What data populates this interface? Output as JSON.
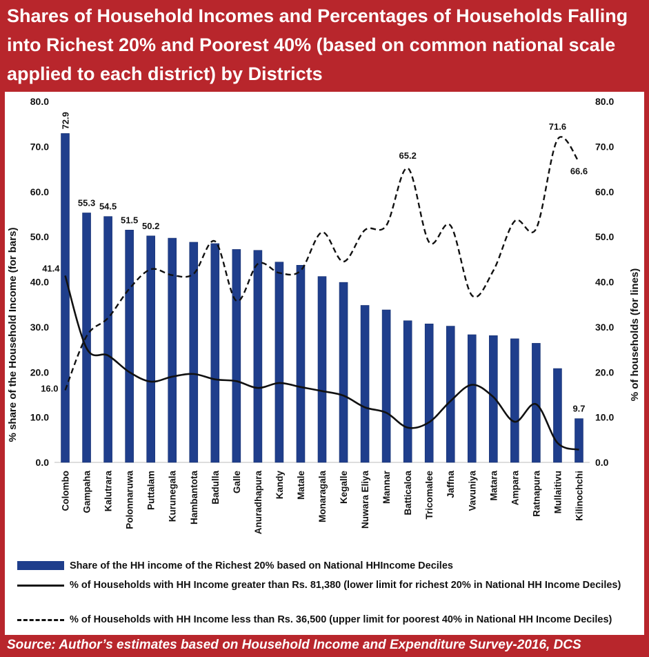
{
  "title": "Shares of Household Incomes and Percentages of Households Falling into Richest 20% and Poorest 40% (based on common national scale applied to each district) by Districts",
  "source": "Source: Author’s estimates based on Household Income and Expenditure Survey-2016, DCS",
  "legend": {
    "bar": "Share of the HH income of the Richest 20% based on National HHIncome Deciles",
    "solid": "% of Households with HH Income greater than Rs. 81,380 (lower limit for richest 20% in National HH Income Deciles)",
    "dashed": "% of Households with HH Income less than Rs. 36,500 (upper limit for poorest 40% in National HH Income Deciles)"
  },
  "colors": {
    "bar": "#1f3e8c",
    "line": "#111111",
    "frame": "#b8262c"
  },
  "chart_data": {
    "type": "bar",
    "categories": [
      "Colombo",
      "Gampaha",
      "Kalutrara",
      "Polonnaruwa",
      "Puttalam",
      "Kurunegala",
      "Hambantota",
      "Badulla",
      "Galle",
      "Anuradhapura",
      "Kandy",
      "Matale",
      "Monaragala",
      "Kegalle",
      "Nuwara Eliya",
      "Mannar",
      "Batticaloa",
      "Tricomalee",
      "Jaffna",
      "Vavuniya",
      "Matara",
      "Ampara",
      "Ratnapura",
      "Mullaitivu",
      "Kilinochchi"
    ],
    "ylabel": "% share of the Household Income (for bars)",
    "y2label": "% of households (for lines)",
    "ylim": [
      0,
      80
    ],
    "yticks": [
      "0.0",
      "10.0",
      "20.0",
      "30.0",
      "40.0",
      "50.0",
      "60.0",
      "70.0",
      "80.0"
    ],
    "series": [
      {
        "style": "bar",
        "values": [
          72.9,
          55.3,
          54.5,
          51.5,
          50.2,
          49.7,
          48.8,
          48.5,
          47.2,
          47.0,
          44.4,
          43.7,
          41.2,
          39.9,
          34.8,
          33.8,
          31.4,
          30.7,
          30.2,
          28.3,
          28.1,
          27.4,
          26.4,
          20.8,
          9.7
        ],
        "labels": [
          "72.9",
          "55.3",
          "54.5",
          "51.5",
          "50.2",
          "",
          "",
          "",
          "",
          "",
          "",
          "",
          "",
          "",
          "",
          "",
          "",
          "",
          "",
          "",
          "",
          "",
          "",
          "",
          "9.7"
        ]
      },
      {
        "style": "solid",
        "axis": "right",
        "values": [
          41.4,
          25.3,
          23.7,
          20.0,
          17.9,
          19.0,
          19.6,
          18.4,
          18.0,
          16.5,
          17.6,
          16.7,
          15.8,
          14.8,
          12.2,
          11.0,
          7.7,
          8.9,
          13.6,
          17.2,
          14.5,
          9.0,
          12.9,
          4.3,
          2.8
        ],
        "labels": [
          "41.4",
          "",
          "",
          "",
          "",
          "",
          "",
          "",
          "",
          "",
          "",
          "",
          "",
          "",
          "",
          "",
          "",
          "",
          "",
          "",
          "",
          "",
          "",
          "",
          ""
        ]
      },
      {
        "style": "dashed",
        "axis": "right",
        "values": [
          16.0,
          28.0,
          32.0,
          38.5,
          42.8,
          41.5,
          41.8,
          49.0,
          35.8,
          44.0,
          42.0,
          42.5,
          51.0,
          44.5,
          51.5,
          52.5,
          65.2,
          48.8,
          52.5,
          37.0,
          42.5,
          53.5,
          51.8,
          71.6,
          66.6
        ],
        "labels": [
          "16.0",
          "",
          "",
          "",
          "",
          "",
          "",
          "",
          "",
          "",
          "",
          "",
          "",
          "",
          "",
          "",
          "65.2",
          "",
          "",
          "",
          "",
          "",
          "",
          "71.6",
          "66.6"
        ]
      }
    ]
  }
}
